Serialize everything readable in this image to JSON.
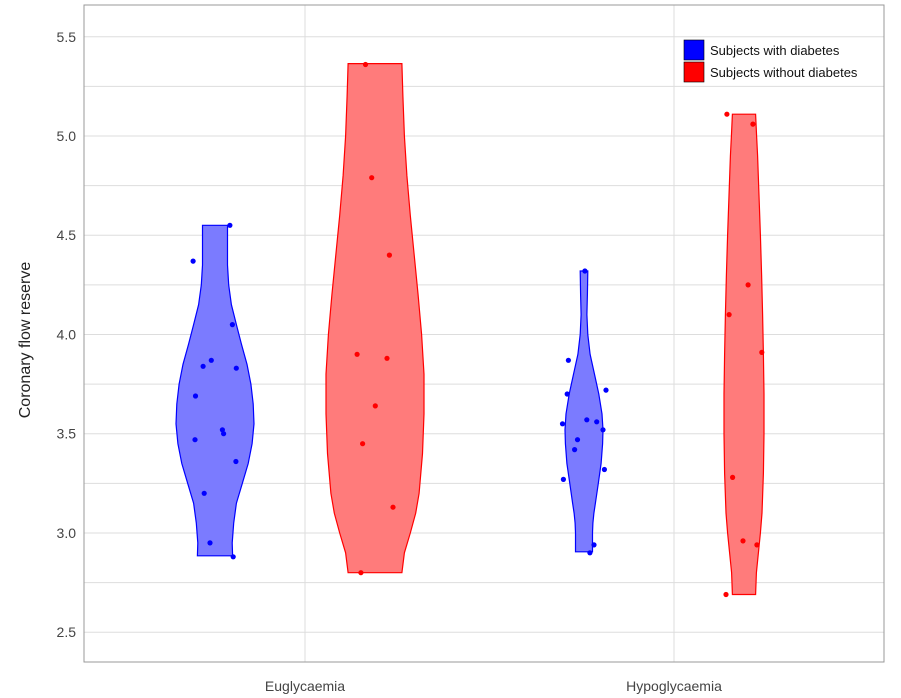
{
  "chart_data": {
    "type": "violin",
    "title": "",
    "xlabel": "",
    "ylabel": "Coronary flow reserve",
    "ylim": [
      2.35,
      5.66
    ],
    "yticks": [
      "2.5",
      "3.0",
      "3.5",
      "4.0",
      "4.5",
      "5.0",
      "5.5"
    ],
    "grid": true,
    "legend_position": "top-right",
    "categories": [
      "Euglycaemia",
      "Hypoglycaemia"
    ],
    "series": [
      {
        "name": "Subjects with diabetes",
        "color": "#0000ff",
        "fill": "#7b7bff",
        "groups": [
          {
            "category": "Euglycaemia",
            "points": [
              4.55,
              4.37,
              4.05,
              3.87,
              3.84,
              3.83,
              3.69,
              3.52,
              3.5,
              3.47,
              3.36,
              3.2,
              2.95,
              2.88
            ],
            "profile": [
              [
                2.885,
                0.45
              ],
              [
                2.95,
                0.44
              ],
              [
                3.05,
                0.48
              ],
              [
                3.15,
                0.55
              ],
              [
                3.25,
                0.7
              ],
              [
                3.35,
                0.85
              ],
              [
                3.45,
                0.95
              ],
              [
                3.55,
                1.0
              ],
              [
                3.65,
                0.98
              ],
              [
                3.75,
                0.92
              ],
              [
                3.85,
                0.82
              ],
              [
                3.95,
                0.68
              ],
              [
                4.05,
                0.55
              ],
              [
                4.15,
                0.42
              ],
              [
                4.25,
                0.35
              ],
              [
                4.35,
                0.32
              ],
              [
                4.45,
                0.32
              ],
              [
                4.55,
                0.32
              ]
            ]
          },
          {
            "category": "Hypoglycaemia",
            "points": [
              4.32,
              3.87,
              3.72,
              3.7,
              3.57,
              3.56,
              3.55,
              3.52,
              3.47,
              3.42,
              3.32,
              3.27,
              2.94,
              2.9
            ],
            "profile": [
              [
                2.905,
                0.45
              ],
              [
                2.95,
                0.45
              ],
              [
                3.0,
                0.45
              ],
              [
                3.05,
                0.47
              ],
              [
                3.1,
                0.52
              ],
              [
                3.15,
                0.6
              ],
              [
                3.25,
                0.75
              ],
              [
                3.35,
                0.9
              ],
              [
                3.45,
                0.98
              ],
              [
                3.52,
                1.0
              ],
              [
                3.6,
                0.95
              ],
              [
                3.7,
                0.78
              ],
              [
                3.8,
                0.55
              ],
              [
                3.9,
                0.32
              ],
              [
                4.0,
                0.2
              ],
              [
                4.1,
                0.15
              ],
              [
                4.2,
                0.18
              ],
              [
                4.32,
                0.2
              ]
            ]
          }
        ]
      },
      {
        "name": "Subjects without diabetes",
        "color": "#ff0000",
        "fill": "#ff7b7b",
        "groups": [
          {
            "category": "Euglycaemia",
            "points": [
              5.36,
              4.79,
              4.4,
              3.9,
              3.88,
              3.64,
              3.45,
              3.13,
              2.8
            ],
            "profile": [
              [
                2.8,
                0.55
              ],
              [
                2.9,
                0.6
              ],
              [
                3.0,
                0.72
              ],
              [
                3.1,
                0.83
              ],
              [
                3.2,
                0.9
              ],
              [
                3.4,
                0.97
              ],
              [
                3.6,
                1.0
              ],
              [
                3.8,
                1.0
              ],
              [
                4.0,
                0.95
              ],
              [
                4.2,
                0.88
              ],
              [
                4.4,
                0.8
              ],
              [
                4.6,
                0.72
              ],
              [
                4.8,
                0.65
              ],
              [
                5.0,
                0.6
              ],
              [
                5.2,
                0.57
              ],
              [
                5.365,
                0.55
              ]
            ]
          },
          {
            "category": "Hypoglycaemia",
            "points": [
              5.11,
              5.06,
              4.25,
              4.1,
              3.91,
              3.28,
              2.96,
              2.94,
              2.69
            ],
            "profile": [
              [
                2.69,
                0.58
              ],
              [
                2.8,
                0.62
              ],
              [
                2.9,
                0.72
              ],
              [
                3.0,
                0.82
              ],
              [
                3.1,
                0.9
              ],
              [
                3.3,
                0.97
              ],
              [
                3.5,
                1.0
              ],
              [
                3.7,
                1.0
              ],
              [
                3.9,
                0.97
              ],
              [
                4.1,
                0.93
              ],
              [
                4.3,
                0.88
              ],
              [
                4.5,
                0.82
              ],
              [
                4.7,
                0.75
              ],
              [
                4.9,
                0.68
              ],
              [
                5.0,
                0.63
              ],
              [
                5.11,
                0.58
              ]
            ]
          }
        ]
      }
    ]
  }
}
